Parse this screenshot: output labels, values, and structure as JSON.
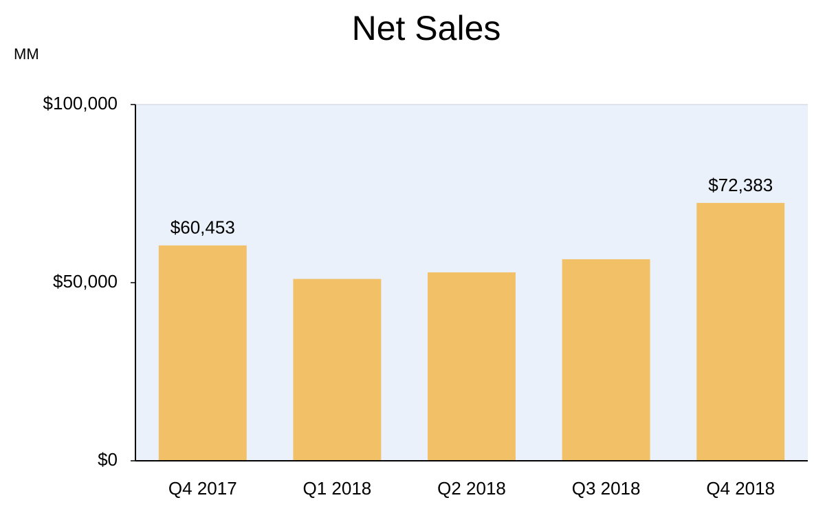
{
  "chart_data": {
    "type": "bar",
    "title": "Net Sales",
    "ylabel": "MM",
    "categories": [
      "Q4 2017",
      "Q1 2018",
      "Q2 2018",
      "Q3 2018",
      "Q4 2018"
    ],
    "values": [
      60453,
      51042,
      52886,
      56576,
      72383
    ],
    "value_labels": [
      "$60,453",
      null,
      null,
      null,
      "$72,383"
    ],
    "color": "#f2c066",
    "plot_background": "#eaf1fa",
    "ylim": [
      0,
      100000
    ],
    "yticks": [
      {
        "value": 0,
        "label": "$0"
      },
      {
        "value": 50000,
        "label": "$50,000"
      },
      {
        "value": 100000,
        "label": "$100,000"
      }
    ],
    "grid": false
  }
}
